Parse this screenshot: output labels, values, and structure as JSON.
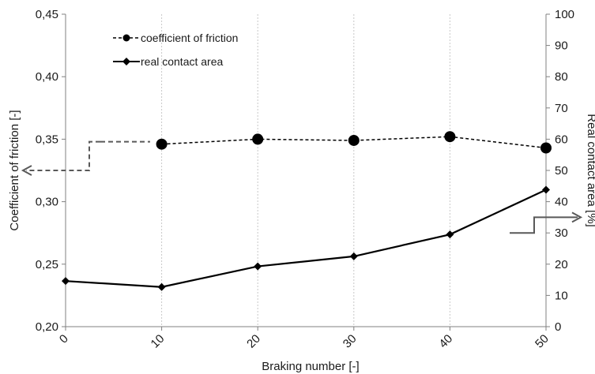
{
  "chart_data": {
    "type": "line",
    "x": [
      0,
      10,
      20,
      30,
      40,
      50
    ],
    "xlabel": "Braking number [-]",
    "ylabel_left": "Coefficient of friction [-]",
    "ylabel_right": "Real contact area [%]",
    "x_tick_labels": [
      "0",
      "10",
      "20",
      "30",
      "40",
      "50"
    ],
    "y_left_tick_labels": [
      "0,45",
      "0,40",
      "0,35",
      "0,30",
      "0,25",
      "0,20"
    ],
    "y_right_tick_labels": [
      "100",
      "90",
      "80",
      "70",
      "60",
      "50",
      "40",
      "30",
      "20",
      "10",
      "0"
    ],
    "xlim": [
      0,
      50
    ],
    "ylim_left": [
      0.2,
      0.45
    ],
    "ylim_right": [
      0,
      100
    ],
    "grid": "vertical",
    "legend_placement": "top-left",
    "series": [
      {
        "name": "coefficient of friction",
        "axis": "left",
        "x": [
          10,
          20,
          30,
          40,
          50
        ],
        "values": [
          0.346,
          0.35,
          0.349,
          0.352,
          0.343
        ],
        "style": "dashed",
        "marker": "circle",
        "color": "#000000"
      },
      {
        "name": "real contact area",
        "axis": "right",
        "x": [
          0,
          10,
          20,
          30,
          40,
          50
        ],
        "values": [
          14.6,
          12.7,
          19.3,
          22.5,
          29.5,
          43.8
        ],
        "style": "solid",
        "marker": "diamond",
        "color": "#000000"
      }
    ],
    "annotations": [
      {
        "type": "axis-pointer-arrow",
        "target_axis": "left",
        "color": "#595959"
      },
      {
        "type": "axis-pointer-arrow",
        "target_axis": "right",
        "color": "#595959"
      }
    ]
  }
}
